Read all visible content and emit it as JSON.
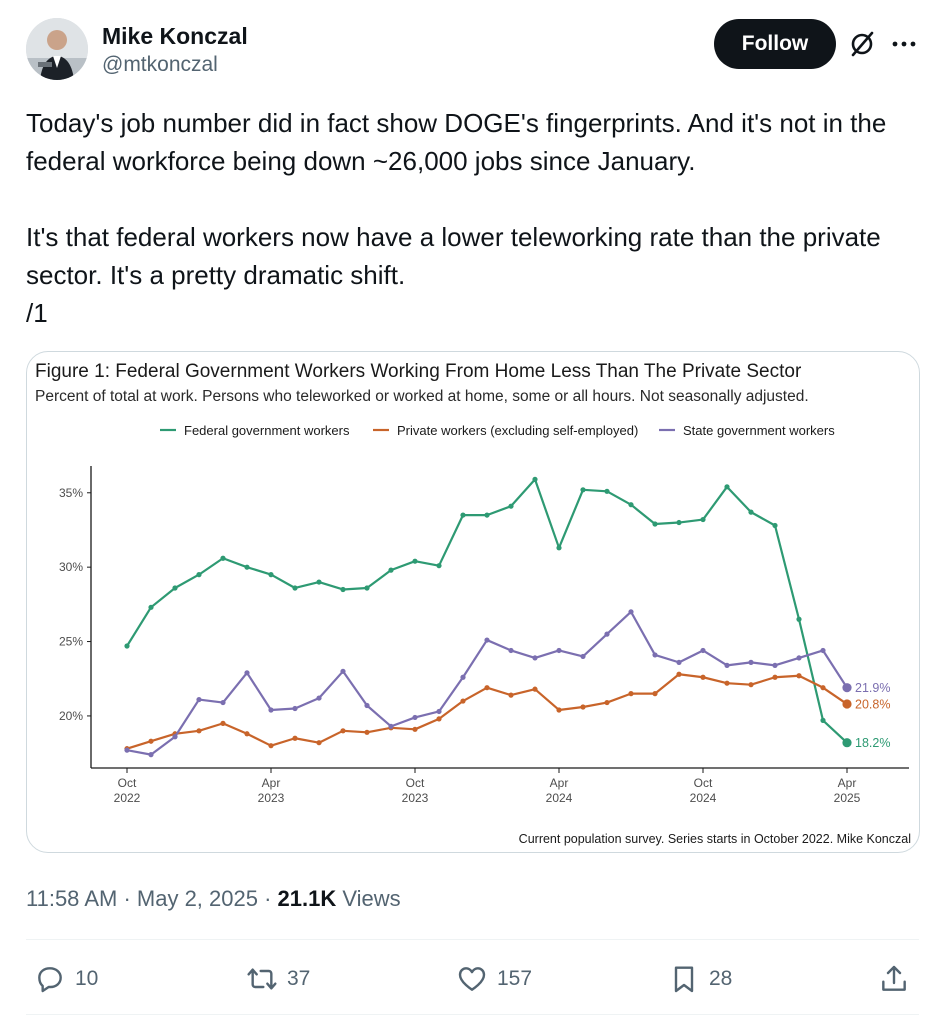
{
  "author": {
    "display_name": "Mike Konczal",
    "handle": "@mtkonczal",
    "avatar_icon": "profile-photo"
  },
  "header": {
    "follow_label": "Follow",
    "grok_icon": "grok-icon",
    "more_icon": "more-icon"
  },
  "tweet": {
    "lines": [
      "Today's job number did in fact show DOGE's fingerprints. And it's not in the federal workforce being down ~26,000 jobs since January.",
      "It's that federal workers now have a lower teleworking rate than the private sector. It's a pretty dramatic shift.\n/1"
    ]
  },
  "chart_data": {
    "type": "line",
    "title": "Figure 1: Federal Government Workers Working From Home Less Than The Private Sector",
    "subtitle": "Percent of total at work. Persons who teleworked or worked at home, some or all hours. Not seasonally adjusted.",
    "caption": "Current population survey. Series starts in October 2022. Mike Konczal",
    "xlabel": "",
    "ylabel": "",
    "ylim": [
      16.5,
      36.8
    ],
    "yticks": [
      20,
      25,
      30,
      35
    ],
    "ytick_labels": [
      "20%",
      "25%",
      "30%",
      "35%"
    ],
    "xticks": [
      {
        "index": 0,
        "label": [
          "Oct",
          "2022"
        ]
      },
      {
        "index": 6,
        "label": [
          "Apr",
          "2023"
        ]
      },
      {
        "index": 12,
        "label": [
          "Oct",
          "2023"
        ]
      },
      {
        "index": 18,
        "label": [
          "Apr",
          "2024"
        ]
      },
      {
        "index": 24,
        "label": [
          "Oct",
          "2024"
        ]
      },
      {
        "index": 30,
        "label": [
          "Apr",
          "2025"
        ]
      }
    ],
    "x": [
      "2022-10",
      "2022-11",
      "2022-12",
      "2023-01",
      "2023-02",
      "2023-03",
      "2023-04",
      "2023-05",
      "2023-06",
      "2023-07",
      "2023-08",
      "2023-09",
      "2023-10",
      "2023-11",
      "2023-12",
      "2024-01",
      "2024-02",
      "2024-03",
      "2024-04",
      "2024-05",
      "2024-06",
      "2024-07",
      "2024-08",
      "2024-09",
      "2024-10",
      "2024-11",
      "2024-12",
      "2025-01",
      "2025-02",
      "2025-03",
      "2025-04"
    ],
    "legend_position": "top",
    "grid": false,
    "series": [
      {
        "name": "Federal government workers",
        "color": "#2e9a73",
        "end_label": "18.2%",
        "values": [
          24.7,
          27.3,
          28.6,
          29.5,
          30.6,
          30.0,
          29.5,
          28.6,
          29.0,
          28.5,
          28.6,
          29.8,
          30.4,
          30.1,
          33.5,
          33.5,
          34.1,
          35.9,
          31.3,
          35.2,
          35.1,
          34.2,
          32.9,
          33.0,
          33.2,
          35.4,
          33.7,
          32.8,
          26.5,
          19.7,
          18.2
        ]
      },
      {
        "name": "Private workers (excluding self-employed)",
        "color": "#c8642a",
        "end_label": "20.8%",
        "values": [
          17.8,
          18.3,
          18.8,
          19.0,
          19.5,
          18.8,
          18.0,
          18.5,
          18.2,
          19.0,
          18.9,
          19.2,
          19.1,
          19.8,
          21.0,
          21.9,
          21.4,
          21.8,
          20.4,
          20.6,
          20.9,
          21.5,
          21.5,
          22.8,
          22.6,
          22.2,
          22.1,
          22.6,
          22.7,
          21.9,
          20.8
        ]
      },
      {
        "name": "State government workers",
        "color": "#7b6fb0",
        "end_label": "21.9%",
        "values": [
          17.7,
          17.4,
          18.6,
          21.1,
          20.9,
          22.9,
          20.4,
          20.5,
          21.2,
          23.0,
          20.7,
          19.3,
          19.9,
          20.3,
          22.6,
          25.1,
          24.4,
          23.9,
          24.4,
          24.0,
          25.5,
          27.0,
          24.1,
          23.6,
          24.4,
          23.4,
          23.6,
          23.4,
          23.9,
          24.4,
          21.9
        ]
      }
    ]
  },
  "meta": {
    "time": "11:58 AM",
    "sep1": " · ",
    "date": "May 2, 2025",
    "sep2": " · ",
    "views_count": "21.1K",
    "views_label": " Views"
  },
  "actions": {
    "replies": "10",
    "reposts": "37",
    "likes": "157",
    "bookmarks": "28"
  }
}
